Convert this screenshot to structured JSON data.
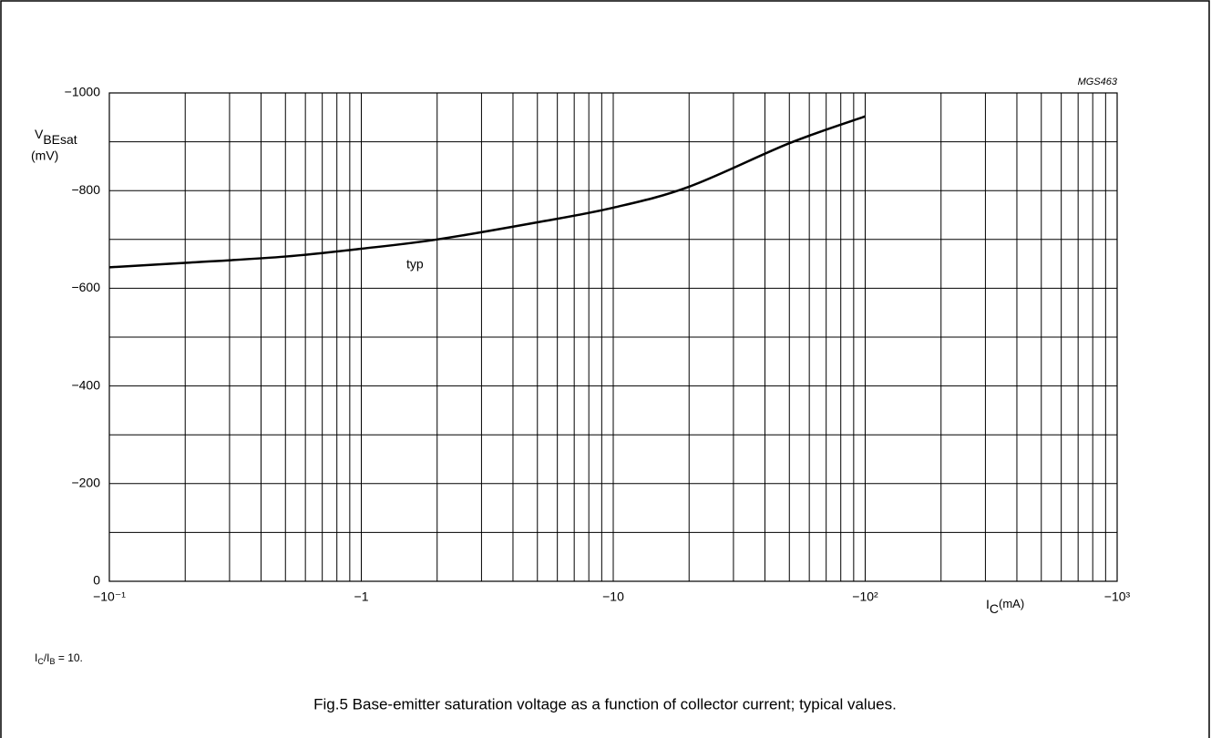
{
  "chart_data": {
    "type": "line",
    "title": "Fig.5  Base-emitter saturation voltage as a function of collector current; typical values.",
    "code": "MGS463",
    "y_label": "V",
    "y_label_sub": "BEsat",
    "y_unit": "(mV)",
    "x_label": "I",
    "x_label_sub": "C",
    "x_unit": "(mA)",
    "note": [
      "I",
      "C",
      "/I",
      "B",
      " = 10."
    ],
    "annotation": "typ",
    "xscale": "log",
    "xlim": [
      -0.1,
      -1000
    ],
    "xticks": [
      {
        "value": -0.1,
        "label": "−10⁻¹"
      },
      {
        "value": -1,
        "label": "−1"
      },
      {
        "value": -10,
        "label": "−10"
      },
      {
        "value": -100,
        "label": "−10²"
      },
      {
        "value": -1000,
        "label": "−10³"
      }
    ],
    "x_minor_ticks": [
      -0.2,
      -0.3,
      -0.4,
      -0.5,
      -0.6,
      -0.7,
      -0.8,
      -0.9,
      -2,
      -3,
      -4,
      -5,
      -6,
      -7,
      -8,
      -9,
      -20,
      -30,
      -40,
      -50,
      -60,
      -70,
      -80,
      -90,
      -200,
      -300,
      -400,
      -500,
      -600,
      -700,
      -800,
      -900
    ],
    "ylim": [
      0,
      -1000
    ],
    "yticks": [
      0,
      {
        "value": -200,
        "label": "−200"
      },
      {
        "value": -400,
        "label": "−400"
      },
      {
        "value": -600,
        "label": "−600"
      },
      {
        "value": -800,
        "label": "−800"
      },
      {
        "value": -1000,
        "label": "−1000"
      }
    ],
    "y_minor_ticks": [
      -100,
      -300,
      -500,
      -700,
      -900
    ],
    "grid": true,
    "x": [
      -0.1,
      -0.2,
      -0.5,
      -1,
      -2,
      -5,
      -10,
      -20,
      -50,
      -100
    ],
    "series": [
      {
        "name": "typ",
        "color": "#000000",
        "values": [
          -643,
          -652,
          -665,
          -681,
          -700,
          -735,
          -765,
          -808,
          -897,
          -952
        ]
      }
    ]
  }
}
